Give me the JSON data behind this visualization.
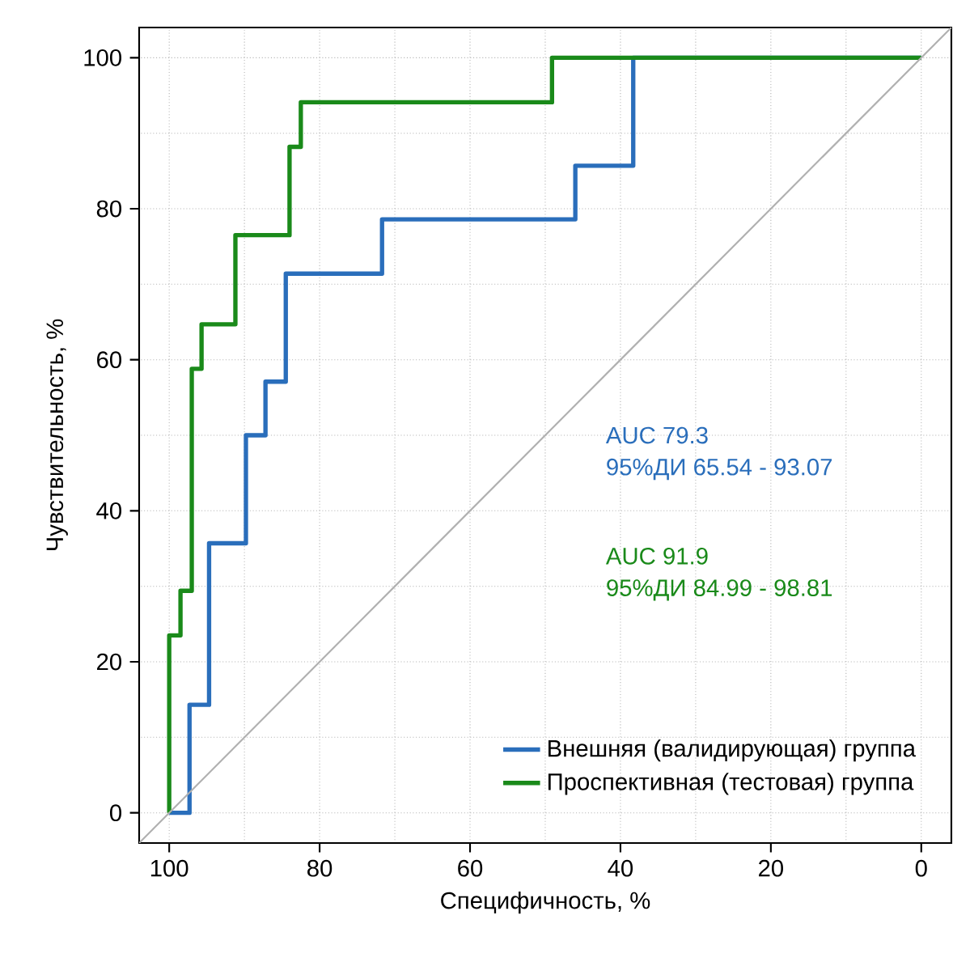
{
  "chart_data": {
    "type": "step",
    "xlabel": "Специфичность, %",
    "ylabel": "Чувствительность, %",
    "xlim": [
      104,
      -4
    ],
    "ylim": [
      -4,
      104
    ],
    "xticks": [
      100,
      80,
      60,
      40,
      20,
      0
    ],
    "yticks": [
      0,
      20,
      40,
      60,
      80,
      100
    ],
    "grid": true,
    "legend": "bottom right",
    "line_style": "solid",
    "marker": "none",
    "series": [
      {
        "name": "Внешняя (валидирующая) группа",
        "color": "#2a6ebb",
        "x": [
          100,
          97.3,
          94.7,
          89.8,
          87.2,
          84.5,
          71.7,
          46.0,
          38.3,
          0
        ],
        "values": [
          0,
          14.3,
          35.7,
          50.0,
          57.1,
          71.4,
          78.6,
          85.7,
          100,
          100
        ]
      },
      {
        "name": "Проспективная (тестовая) группа",
        "color": "#1a8a1a",
        "x": [
          100,
          100,
          98.5,
          97.0,
          95.7,
          91.2,
          84.0,
          82.5,
          49.1,
          0
        ],
        "values": [
          0,
          23.5,
          29.4,
          58.8,
          64.7,
          76.5,
          88.2,
          94.1,
          100,
          100
        ]
      },
      {
        "type": "line",
        "color": "#b0b0b0",
        "x": [
          104,
          -4
        ],
        "values": [
          -4,
          104
        ]
      }
    ],
    "annotations": [
      "AUC  79.3",
      "95%ДИ  65.54 - 93.07",
      "AUC  91.9",
      "95%ДИ  84.99 - 98.81"
    ]
  }
}
